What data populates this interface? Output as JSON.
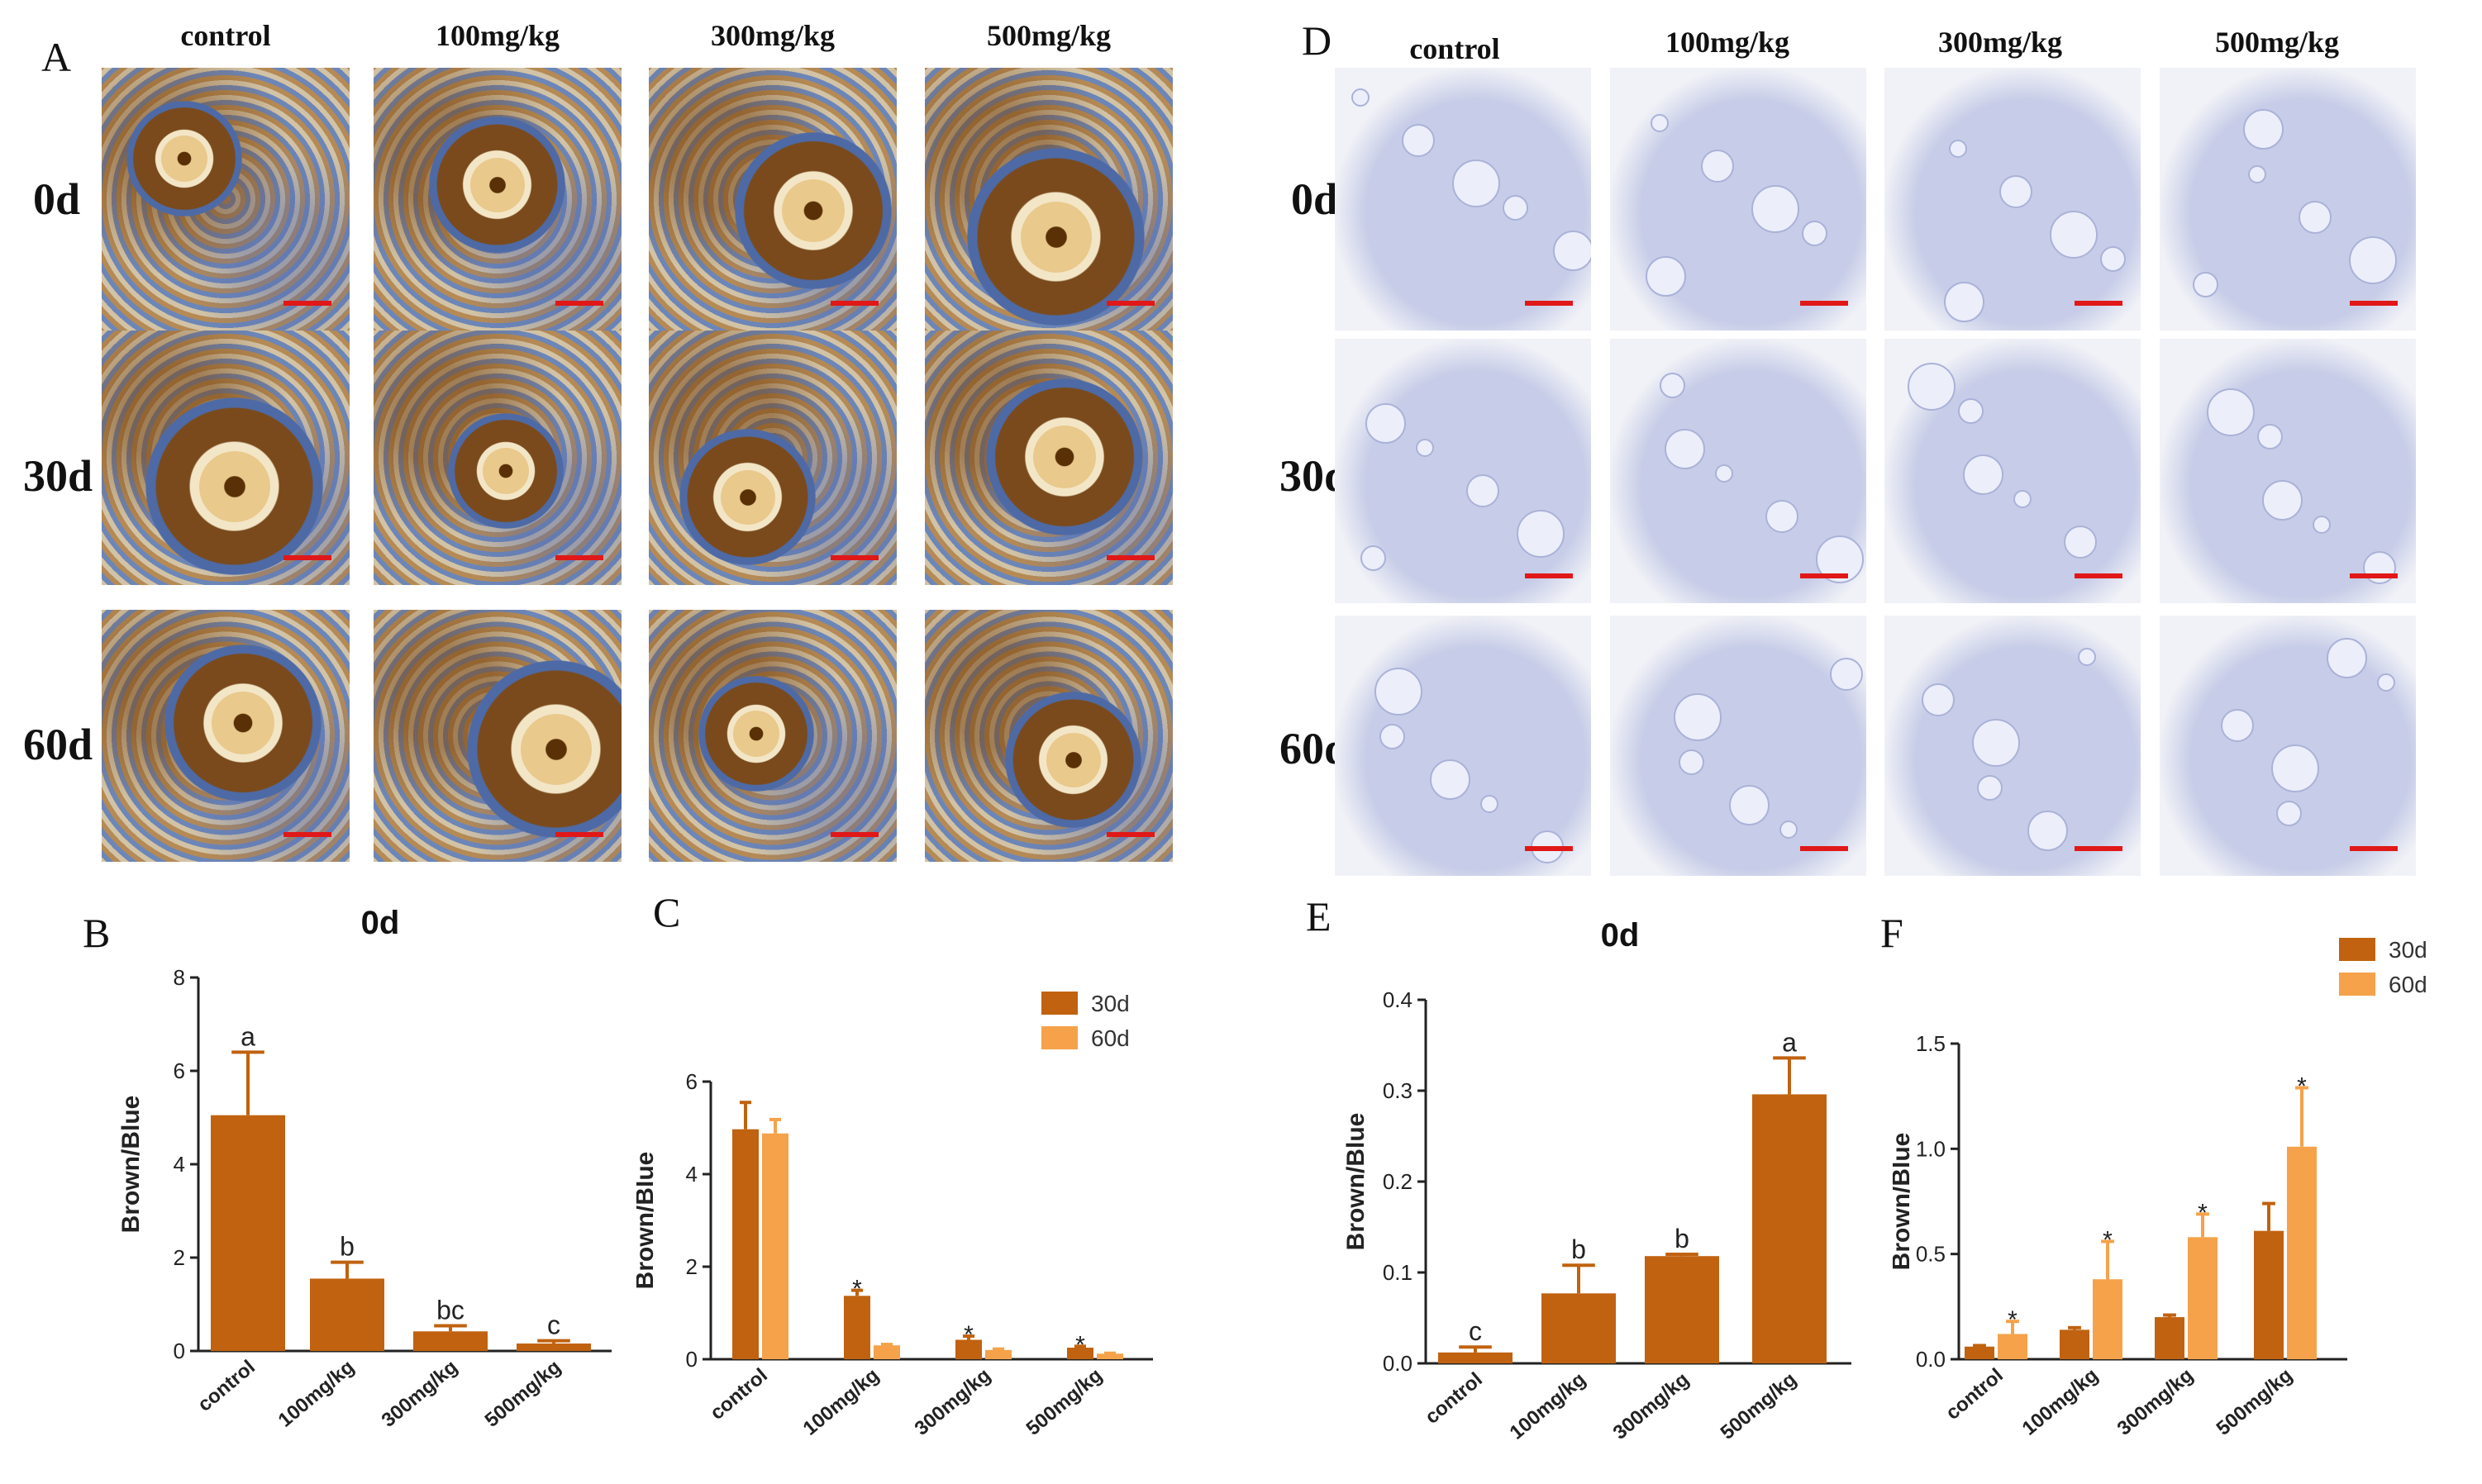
{
  "panel_labels": {
    "A": "A",
    "B": "B",
    "C": "C",
    "D": "D",
    "E": "E",
    "F": "F"
  },
  "columns": [
    "control",
    "100mg/kg",
    "300mg/kg",
    "500mg/kg"
  ],
  "rows": [
    "0d",
    "30d",
    "60d"
  ],
  "colors": {
    "series30": "#c0620f",
    "series60": "#f5a24a",
    "scalebar": "#e01818"
  },
  "chart_data": [
    {
      "panel": "B",
      "type": "bar",
      "title": "0d",
      "xlabel": "",
      "ylabel": "Brown/Blue",
      "categories": [
        "control",
        "100mg/kg",
        "300mg/kg",
        "500mg/kg"
      ],
      "values": [
        5.05,
        1.55,
        0.42,
        0.16
      ],
      "errors": [
        1.35,
        0.35,
        0.12,
        0.06
      ],
      "labels": [
        "a",
        "b",
        "bc",
        "c"
      ],
      "ylim": [
        0,
        8
      ],
      "yticks": [
        0,
        2,
        4,
        6,
        8
      ]
    },
    {
      "panel": "C",
      "type": "bar",
      "title": "",
      "xlabel": "",
      "ylabel": "Brown/Blue",
      "categories": [
        "control",
        "100mg/kg",
        "300mg/kg",
        "500mg/kg"
      ],
      "series": [
        {
          "name": "30d",
          "values": [
            4.97,
            1.37,
            0.42,
            0.25
          ],
          "errors": [
            0.58,
            0.12,
            0.08,
            0.03
          ]
        },
        {
          "name": "60d",
          "values": [
            4.88,
            0.3,
            0.2,
            0.12
          ],
          "errors": [
            0.3,
            0.02,
            0.02,
            0.01
          ]
        }
      ],
      "marks": [
        "",
        "*",
        "*",
        "*"
      ],
      "ylim": [
        0,
        6
      ],
      "yticks": [
        0,
        2,
        4,
        6
      ]
    },
    {
      "panel": "E",
      "type": "bar",
      "title": "0d",
      "xlabel": "",
      "ylabel": "Brown/Blue",
      "categories": [
        "control",
        "100mg/kg",
        "300mg/kg",
        "500mg/kg"
      ],
      "values": [
        0.012,
        0.077,
        0.118,
        0.296
      ],
      "errors": [
        0.006,
        0.031,
        0.002,
        0.04
      ],
      "labels": [
        "c",
        "b",
        "b",
        "a"
      ],
      "ylim": [
        0,
        0.4
      ],
      "yticks": [
        0.0,
        0.1,
        0.2,
        0.3,
        0.4
      ],
      "ytick_labels": [
        "0.0",
        "0.1",
        "0.2",
        "0.3",
        "0.4"
      ]
    },
    {
      "panel": "F",
      "type": "bar",
      "title": "",
      "xlabel": "",
      "ylabel": "Brown/Blue",
      "categories": [
        "control",
        "100mg/kg",
        "300mg/kg",
        "500mg/kg"
      ],
      "series": [
        {
          "name": "30d",
          "values": [
            0.06,
            0.14,
            0.2,
            0.61
          ],
          "errors": [
            0.005,
            0.01,
            0.01,
            0.13
          ]
        },
        {
          "name": "60d",
          "values": [
            0.12,
            0.38,
            0.58,
            1.01
          ],
          "errors": [
            0.06,
            0.18,
            0.11,
            0.28
          ]
        }
      ],
      "marks": [
        "*",
        "*",
        "*",
        "*"
      ],
      "ylim": [
        0,
        1.5
      ],
      "yticks": [
        0.0,
        0.5,
        1.0,
        1.5
      ],
      "ytick_labels": [
        "0.0",
        "0.5",
        "1.0",
        "1.5"
      ]
    }
  ]
}
